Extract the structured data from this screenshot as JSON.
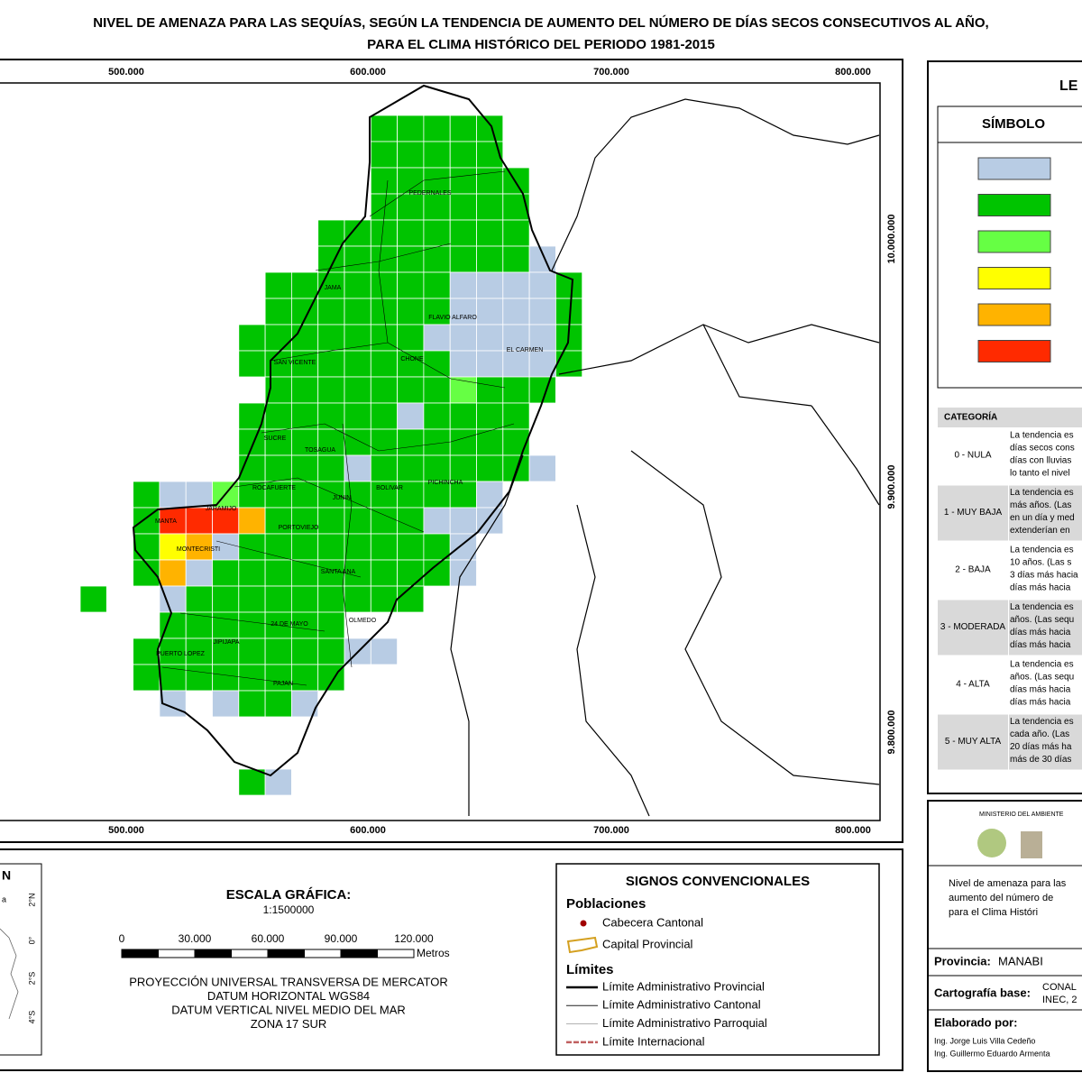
{
  "header": {
    "title_lines": [
      "NIVEL DE AMENAZA PARA LAS SEQUÍAS, SEGÚN LA TENDENCIA DE AUMENTO DEL NÚMERO DE DÍAS SECOS CONSECUTIVOS AL AÑO,",
      "PARA EL CLIMA HISTÓRICO DEL PERIODO 1981-2015"
    ]
  },
  "map": {
    "x_labels": [
      "500.000",
      "600.000",
      "700.000",
      "800.000"
    ],
    "y_labels": [
      "10.000.000",
      "9.900.000",
      "9.800.000"
    ],
    "places": [
      "PEDERNALES",
      "JAMA",
      "FLAVIO ALFARO",
      "EL CARMEN",
      "SAN VICENTE",
      "CHONE",
      "SUCRE",
      "TOSAGUA",
      "ROCAFUERTE",
      "JUNIN",
      "BOLIVAR",
      "PICHINCHA",
      "MANTA",
      "JARAMIJO",
      "PORTOVIEJO",
      "MONTECRISTI",
      "SANTA ANA",
      "24 DE MAYO",
      "OLMEDO",
      "JIPIJAPA",
      "PUERTO LOPEZ",
      "PAJAN"
    ]
  },
  "legend": {
    "title": "LE",
    "symbol_header": "SÍMBOLO",
    "table": {
      "header": "CATEGORÍA",
      "rows": [
        {
          "category": "0 - NULA",
          "lines": [
            "La tendencia es",
            "días secos cons",
            "días con lluvias",
            "lo tanto el nivel"
          ]
        },
        {
          "category": "1 - MUY BAJA",
          "lines": [
            "La tendencia es",
            "más años. (Las",
            "en un día y med",
            "extenderían en"
          ]
        },
        {
          "category": "2 - BAJA",
          "lines": [
            "La tendencia es",
            "10 años. (Las s",
            "3 días más hacia",
            "días más hacia"
          ]
        },
        {
          "category": "3 - MODERADA",
          "lines": [
            "La tendencia es",
            "años. (Las sequ",
            "días más hacia",
            "días más hacia"
          ]
        },
        {
          "category": "4 - ALTA",
          "lines": [
            "La tendencia es",
            "años. (Las sequ",
            "días más hacia",
            "días más hacia"
          ]
        },
        {
          "category": "5 - MUY ALTA",
          "lines": [
            "La tendencia es",
            "cada año. (Las",
            "20 días más ha",
            "más de 30 días"
          ]
        }
      ]
    }
  },
  "inset": {
    "title": "N",
    "word": "a",
    "labels": [
      "2°N",
      "0°",
      "2°S",
      "4°S"
    ]
  },
  "scale": {
    "title": "ESCALA GRÁFICA:",
    "ratio": "1:1500000",
    "ticks": [
      "0",
      "30.000",
      "60.000",
      "90.000",
      "120.000"
    ],
    "unit": "Metros"
  },
  "projection": [
    "PROYECCIÓN UNIVERSAL TRANSVERSA DE MERCATOR",
    "DATUM HORIZONTAL WGS84",
    "DATUM VERTICAL NIVEL MEDIO DEL MAR",
    "ZONA 17 SUR"
  ],
  "signs": {
    "title": "SIGNOS CONVENCIONALES",
    "populations_title": "Poblaciones",
    "populations": [
      "Cabecera Cantonal",
      "Capital Provincial"
    ],
    "limits_title": "Límites",
    "limits": [
      "Límite Administrativo Provincial",
      "Límite Administrativo Cantonal",
      "Límite Administrativo Parroquial",
      "Límite Internacional"
    ]
  },
  "credits": {
    "ministry": "MINISTERIO DEL AMBIENTE",
    "description_lines": [
      "Nivel de amenaza para las",
      "aumento del número de",
      "para el Clima Históri"
    ],
    "province_label": "Provincia:",
    "province": "MANABI",
    "base_label": "Cartografía base:",
    "base_lines": [
      "CONAL",
      "INEC, 2"
    ],
    "made_by_label": "Elaborado por:",
    "authors": [
      "Ing. Jorge Luis Villa Cedeño",
      "Ing. Guillermo Eduardo Armenta"
    ]
  }
}
